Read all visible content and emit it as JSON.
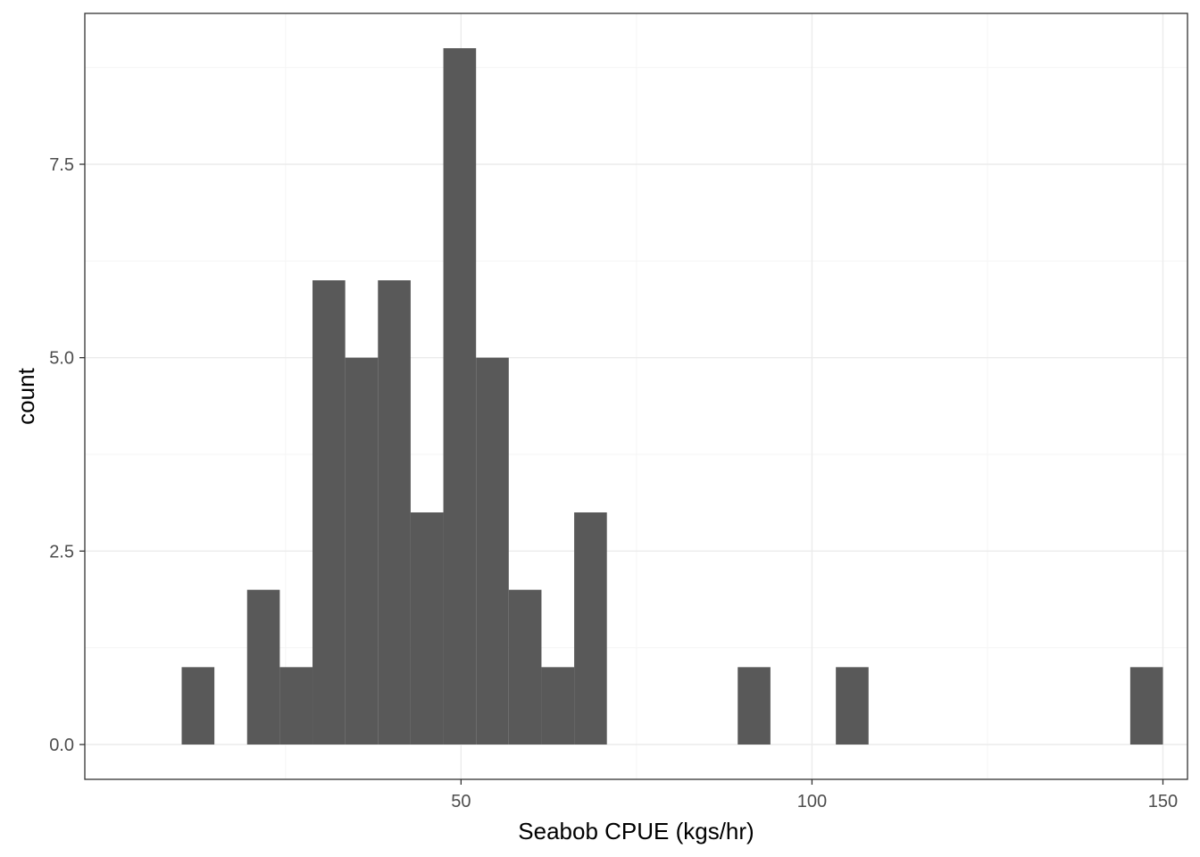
{
  "chart_data": {
    "type": "bar",
    "xlabel": "Seabob CPUE (kgs/hr)",
    "ylabel": "count",
    "xlim": [
      -3.6,
      153.5
    ],
    "ylim": [
      -0.45,
      9.45
    ],
    "x_ticks": [
      50,
      100,
      150
    ],
    "x_tick_labels": [
      "50",
      "100",
      "150"
    ],
    "y_ticks": [
      0.0,
      2.5,
      5.0,
      7.5
    ],
    "y_tick_labels": [
      "0.0",
      "2.5",
      "5.0",
      "7.5"
    ],
    "grid": true,
    "bin_width": 4.66,
    "bins": [
      {
        "x0": 10.2,
        "x1": 14.86,
        "count": 1
      },
      {
        "x0": 19.52,
        "x1": 24.18,
        "count": 2
      },
      {
        "x0": 24.18,
        "x1": 28.84,
        "count": 1
      },
      {
        "x0": 28.84,
        "x1": 33.5,
        "count": 6
      },
      {
        "x0": 33.5,
        "x1": 38.16,
        "count": 5
      },
      {
        "x0": 38.16,
        "x1": 42.82,
        "count": 6
      },
      {
        "x0": 42.82,
        "x1": 47.48,
        "count": 3
      },
      {
        "x0": 47.48,
        "x1": 52.14,
        "count": 9
      },
      {
        "x0": 52.14,
        "x1": 56.8,
        "count": 5
      },
      {
        "x0": 56.8,
        "x1": 61.46,
        "count": 2
      },
      {
        "x0": 61.46,
        "x1": 66.12,
        "count": 1
      },
      {
        "x0": 66.12,
        "x1": 70.78,
        "count": 3
      },
      {
        "x0": 89.42,
        "x1": 94.08,
        "count": 1
      },
      {
        "x0": 103.4,
        "x1": 108.06,
        "count": 1
      },
      {
        "x0": 145.34,
        "x1": 150.0,
        "count": 1
      }
    ],
    "colors": {
      "bar": "#595959",
      "grid_major": "#ebebeb",
      "grid_minor": "#f5f5f5",
      "border": "#333333"
    }
  }
}
